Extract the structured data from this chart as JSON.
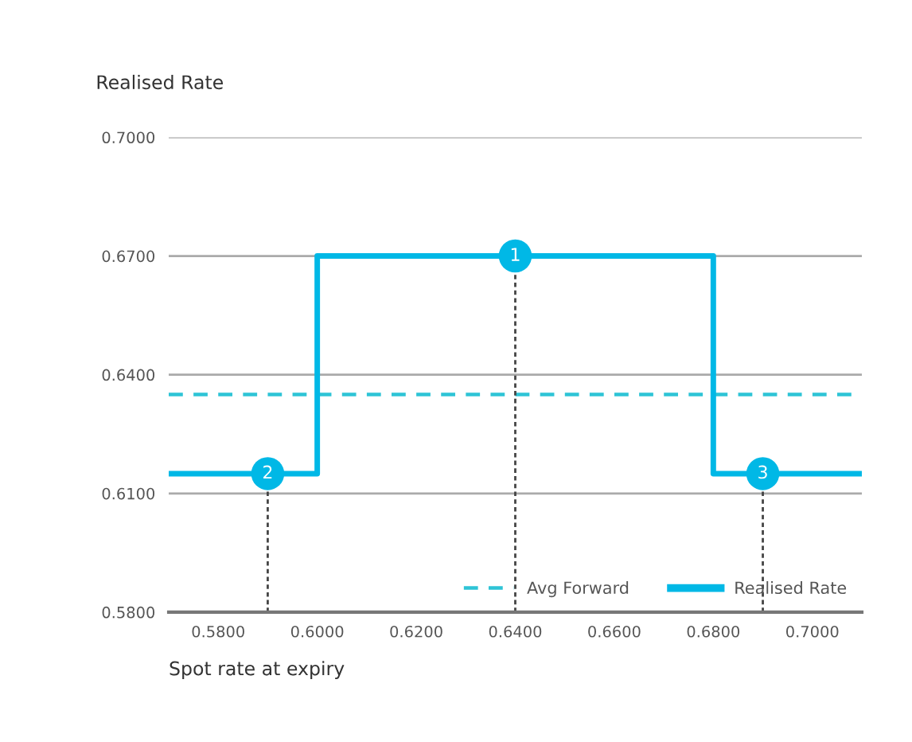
{
  "chart_data": {
    "type": "step",
    "xlabel": "Spot rate at expiry",
    "ylabel": "Realised Rate",
    "series": [
      {
        "name": "Realised Rate",
        "color": "#00b8e6",
        "x": [
          0.57,
          0.6,
          0.68,
          0.71
        ],
        "values": [
          0.615,
          0.67,
          0.615,
          0.615
        ]
      }
    ],
    "ref_lines": [
      {
        "axis": "y",
        "value": 0.635,
        "label": "Avg Forward",
        "color": "#2ec4d6",
        "line_style": "dashed"
      }
    ],
    "annotations": [
      {
        "text": "1",
        "x": 0.64,
        "y": 0.67
      },
      {
        "text": "2",
        "x": 0.59,
        "y": 0.615
      },
      {
        "text": "3",
        "x": 0.69,
        "y": 0.615
      }
    ],
    "xlim": [
      0.57,
      0.71
    ],
    "ylim": [
      0.58,
      0.7
    ],
    "xticks": [
      {
        "value": 0.58,
        "label": "0.5800"
      },
      {
        "value": 0.6,
        "label": "0.6000"
      },
      {
        "value": 0.62,
        "label": "0.6200"
      },
      {
        "value": 0.64,
        "label": "0.6400"
      },
      {
        "value": 0.66,
        "label": "0.6600"
      },
      {
        "value": 0.68,
        "label": "0.6800"
      },
      {
        "value": 0.7,
        "label": "0.7000"
      }
    ],
    "yticks": [
      {
        "value": 0.58,
        "label": "0.5800"
      },
      {
        "value": 0.61,
        "label": "0.6100"
      },
      {
        "value": 0.64,
        "label": "0.6400"
      },
      {
        "value": 0.67,
        "label": "0.6700"
      },
      {
        "value": 0.7,
        "label": "0.7000"
      }
    ],
    "grid": "y",
    "legend": "bottom right"
  }
}
